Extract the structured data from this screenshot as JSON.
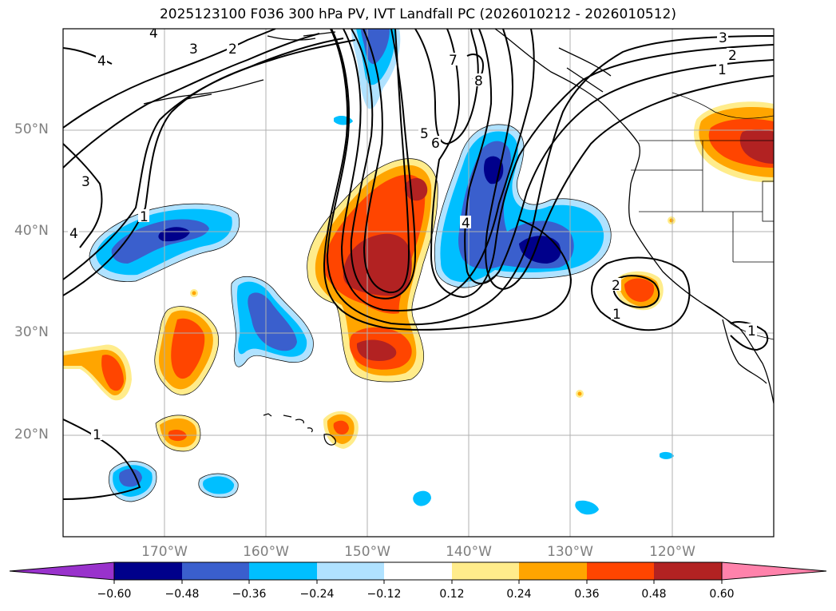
{
  "title": "2025123100 F036 300 hPa PV, IVT Landfall PC (2026010212 - 2026010512)",
  "map": {
    "lat_labels": [
      "50°N",
      "40°N",
      "30°N",
      "20°N"
    ],
    "lon_labels": [
      "170°W",
      "160°W",
      "150°W",
      "140°W",
      "130°W",
      "120°W"
    ],
    "contour_labels": [
      "4",
      "3",
      "2",
      "4",
      "3",
      "4",
      "1",
      "7",
      "8",
      "5",
      "6",
      "4",
      "3",
      "2",
      "1",
      "2",
      "1",
      "1",
      "1"
    ]
  },
  "colorbar": {
    "ticks": [
      "−0.60",
      "−0.48",
      "−0.36",
      "−0.24",
      "−0.12",
      "0.12",
      "0.24",
      "0.36",
      "0.48",
      "0.60"
    ],
    "colors": [
      "#9932cc",
      "#00008b",
      "#3a5fcd",
      "#00bfff",
      "#b0e2ff",
      "#ffffff",
      "#ffec8b",
      "#ffa500",
      "#ff4500",
      "#b22222",
      "#ff82ab"
    ]
  },
  "chart_data": {
    "type": "heatmap",
    "title": "2025123100 F036 300 hPa PV, IVT Landfall PC (2026010212 - 2026010512)",
    "x_axis": "longitude",
    "y_axis": "latitude",
    "xlim": [
      -180,
      -110
    ],
    "ylim": [
      10,
      60
    ],
    "xticks": [
      "170°W",
      "160°W",
      "150°W",
      "140°W",
      "130°W",
      "120°W"
    ],
    "yticks": [
      "20°N",
      "30°N",
      "40°N",
      "50°N"
    ],
    "color_levels": [
      -0.6,
      -0.48,
      -0.36,
      -0.24,
      -0.12,
      0.12,
      0.24,
      0.36,
      0.48,
      0.6
    ],
    "contour_field": "300 hPa PV",
    "contour_levels_labeled": [
      1,
      2,
      3,
      4,
      5,
      6,
      7,
      8
    ]
  }
}
